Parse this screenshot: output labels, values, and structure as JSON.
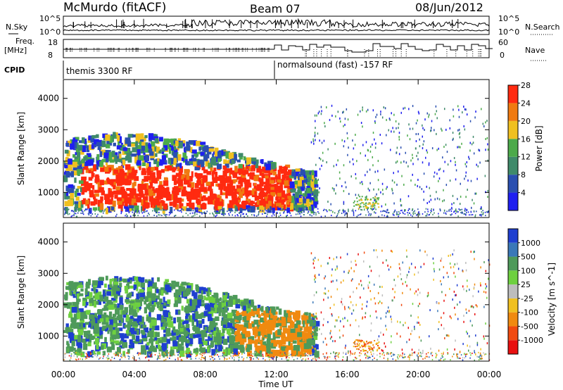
{
  "header": {
    "station": "McMurdo (fitACF)",
    "beam": "Beam 07",
    "date": "08/Jun/2012"
  },
  "top_panels": {
    "nsky_label": "N.Sky",
    "nsearch_label": "N.Search",
    "nsky_ticks": [
      "10^5",
      "10^0"
    ],
    "nsearch_ticks": [
      "10^5",
      "10^0"
    ],
    "freq_label_1": "Freq.",
    "freq_label_2": "[MHz]",
    "freq_ticks": [
      "18",
      "8"
    ],
    "nave_label": "Nave",
    "nave_ticks": [
      "60",
      "0"
    ],
    "cpid_label": "CPID",
    "cpid_1": "themis 3300 RF",
    "cpid_2": "normalsound (fast) -157 RF"
  },
  "chart_data": [
    {
      "type": "heatmap",
      "title": "",
      "ylabel": "Slant Range [km]",
      "xlabel": "",
      "x_ticks": [
        "00:00",
        "04:00",
        "08:00",
        "12:00",
        "16:00",
        "20:00",
        "00:00"
      ],
      "y_ticks": [
        1000,
        2000,
        3000,
        4000
      ],
      "ylim": [
        200,
        4600
      ],
      "colorbar": {
        "label": "Power [dB]",
        "ticks": [
          "4",
          "8",
          "12",
          "16",
          "20",
          "24",
          "28"
        ],
        "colors": [
          "#1f1ff0",
          "#2a4fb0",
          "#3f8a6a",
          "#4caa4a",
          "#f0c020",
          "#f07a10",
          "#ff2a10"
        ]
      }
    },
    {
      "type": "heatmap",
      "title": "",
      "ylabel": "Slant Range [km]",
      "xlabel": "Time UT",
      "x_ticks": [
        "00:00",
        "04:00",
        "08:00",
        "12:00",
        "16:00",
        "20:00",
        "00:00"
      ],
      "y_ticks": [
        1000,
        2000,
        3000,
        4000
      ],
      "ylim": [
        200,
        4600
      ],
      "colorbar": {
        "label": "Velocity [m s^-1]",
        "ticks": [
          "1000",
          "500",
          "100",
          "25",
          "-25",
          "-100",
          "-500",
          "-1000"
        ],
        "colors": [
          "#1f3fd0",
          "#3a78b8",
          "#4e9a5a",
          "#6ed040",
          "#bdbdbd",
          "#f0c020",
          "#f08a10",
          "#f04a10",
          "#e81010"
        ]
      }
    }
  ]
}
